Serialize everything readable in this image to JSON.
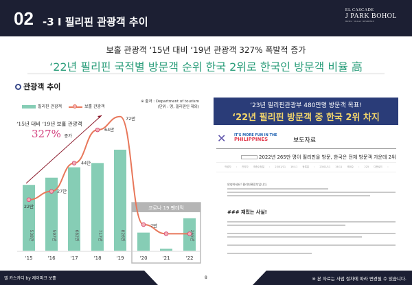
{
  "header": {
    "number": "02",
    "section": "-3 I 필리핀 관광객 추이",
    "logo": {
      "line1": "EL CASCADE",
      "line2": "J PARK BOHOL",
      "line3": "HOTEL · VILLAS · RESIDENCE"
    }
  },
  "subtitle": {
    "line1": "보홀 관광객 ‘15년 대비 ‘19년 관광객 327% 폭발적 증가",
    "line2": "‘22년 필리핀 국적별 방문객 순위 한국 2위로 한국인 방문객 비율 高"
  },
  "chart_section": {
    "title": "관광객 추이",
    "source": "※ 출처 : Department of tourism",
    "unit": "(단위 : 명, 필리핀인 제외)",
    "note_line": "‘15년 대비 ‘19년 보홀 관광객",
    "note_pct": "327%",
    "note_suffix": "증가",
    "covid_label": "코로나 19 펜데믹"
  },
  "chart_data": {
    "type": "bar+line",
    "categories": [
      "‘15",
      "‘16",
      "‘17",
      "‘18",
      "‘19",
      "‘20",
      "‘21",
      "‘22"
    ],
    "series": [
      {
        "name": "필리핀 관광객",
        "type": "bar",
        "values": [
          538,
          597,
          682,
          717,
          826,
          148,
          16,
          265
        ],
        "labels": [
          "538만",
          "597만",
          "682만",
          "717만",
          "826만",
          "",
          "",
          "265만"
        ],
        "color": "#86cdb5"
      },
      {
        "name": "보홀 관광객",
        "type": "line",
        "values": [
          22,
          27,
          44,
          64,
          72,
          7,
          1.5,
          1.5
        ],
        "labels": [
          "22만",
          "27만",
          "44만",
          "64만",
          "72만",
          "7만",
          "",
          ""
        ],
        "color": "#e8775a"
      }
    ],
    "unit": "만"
  },
  "press": {
    "banner_line1": "‘23년 필리핀관광부 480만명 방문객 목표!",
    "banner_line2": "‘22년 필리핀 방문객 중 한국 2위 차지",
    "brand_small": "IT'S MORE FUN IN THE",
    "brand_big": "PHILIPPINES",
    "heading": "보도자료",
    "title": "2022년 265만 명이 필리핀을 방문, 한국은 전체 방문객 가운데 2위",
    "meta": "작성자 : 관리자   최종수정일 : 23/01/11 16:11   등록일 : 23/01/11 16:11   조회수 : 225   다운로드 :",
    "greeting": "안녕하세요! 필리핀관광부입니다.",
    "fun_fact": "### 재밌는 사실!"
  },
  "footer": {
    "left": "엘 카스카디 by 제이파크 보홀",
    "page": "8",
    "right": "※ 본 자료는 사업 절차에 따라 변경될 수 있습니다."
  }
}
